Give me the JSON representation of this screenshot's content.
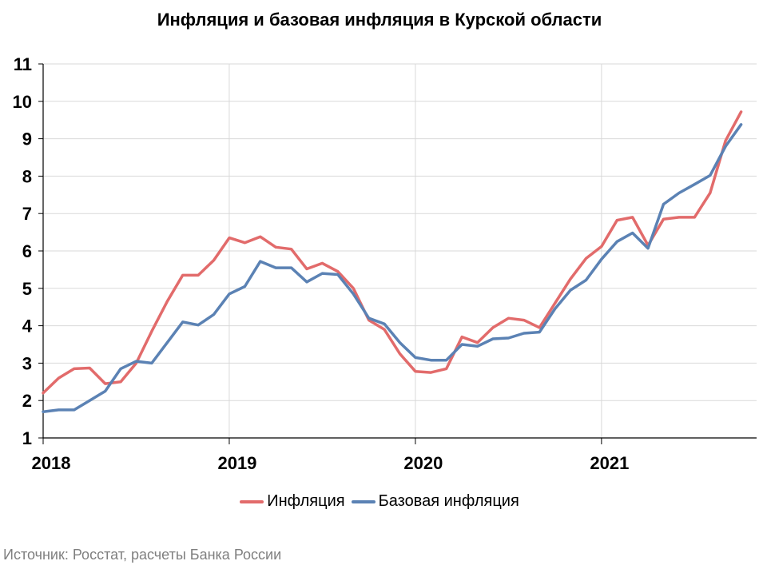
{
  "chart_data": {
    "type": "line",
    "title": "Инфляция и базовая инфляция в Курской области",
    "xlabel": "",
    "ylabel": "",
    "ylim": [
      1,
      11
    ],
    "yticks": [
      "1",
      "2",
      "3",
      "4",
      "5",
      "6",
      "7",
      "8",
      "9",
      "10",
      "11"
    ],
    "xticks": [
      "2018",
      "2019",
      "2020",
      "2021"
    ],
    "grid": true,
    "legend_position": "bottom",
    "x": [
      "2018-01",
      "2018-02",
      "2018-03",
      "2018-04",
      "2018-05",
      "2018-06",
      "2018-07",
      "2018-08",
      "2018-09",
      "2018-10",
      "2018-11",
      "2018-12",
      "2019-01",
      "2019-02",
      "2019-03",
      "2019-04",
      "2019-05",
      "2019-06",
      "2019-07",
      "2019-08",
      "2019-09",
      "2019-10",
      "2019-11",
      "2019-12",
      "2020-01",
      "2020-02",
      "2020-03",
      "2020-04",
      "2020-05",
      "2020-06",
      "2020-07",
      "2020-08",
      "2020-09",
      "2020-10",
      "2020-11",
      "2020-12",
      "2021-01",
      "2021-02",
      "2021-03",
      "2021-04",
      "2021-05",
      "2021-06",
      "2021-07",
      "2021-08",
      "2021-09",
      "2021-10"
    ],
    "series": [
      {
        "name": "Инфляция",
        "color": "#e26b6b",
        "values": [
          2.2,
          2.6,
          2.85,
          2.87,
          2.45,
          2.5,
          3.0,
          3.85,
          4.65,
          5.35,
          5.35,
          5.75,
          6.35,
          6.22,
          6.38,
          6.1,
          6.05,
          5.52,
          5.67,
          5.45,
          5.0,
          4.15,
          3.9,
          3.25,
          2.78,
          2.75,
          2.85,
          3.7,
          3.55,
          3.95,
          4.2,
          4.15,
          3.95,
          4.6,
          5.25,
          5.8,
          6.12,
          6.82,
          6.9,
          6.15,
          6.85,
          6.9,
          6.9,
          7.55,
          8.95,
          9.72
        ]
      },
      {
        "name": "Базовая инфляция",
        "color": "#5b82b4",
        "values": [
          1.7,
          1.75,
          1.75,
          2.0,
          2.25,
          2.85,
          3.05,
          3.0,
          3.55,
          4.1,
          4.02,
          4.3,
          4.85,
          5.05,
          5.72,
          5.55,
          5.55,
          5.17,
          5.4,
          5.37,
          4.85,
          4.2,
          4.05,
          3.55,
          3.15,
          3.08,
          3.08,
          3.5,
          3.45,
          3.65,
          3.67,
          3.8,
          3.83,
          4.45,
          4.95,
          5.22,
          5.78,
          6.25,
          6.48,
          6.07,
          7.25,
          7.55,
          7.78,
          8.02,
          8.8,
          9.38
        ]
      }
    ]
  },
  "source": "Источник: Росстат, расчеты Банка России"
}
